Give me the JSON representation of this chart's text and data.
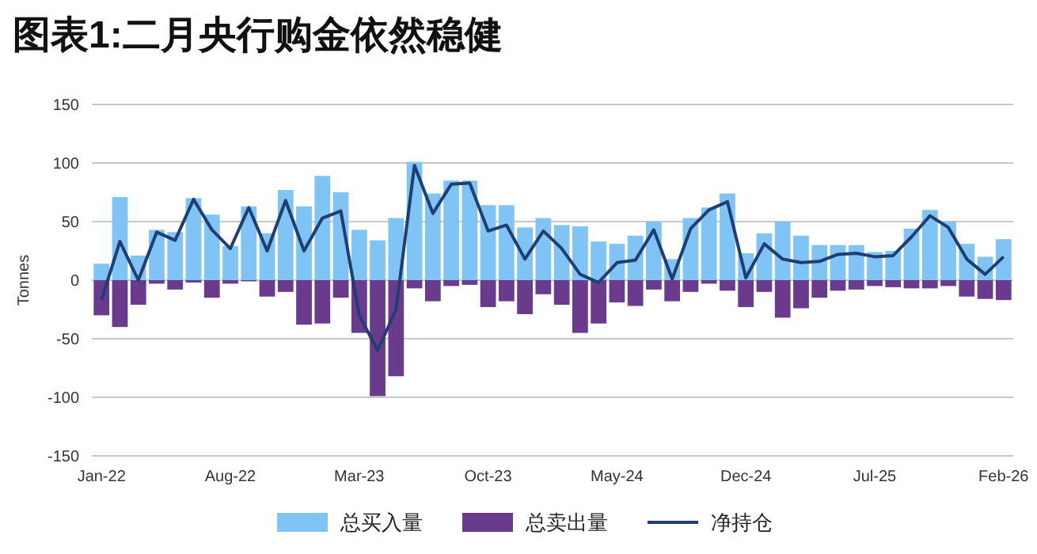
{
  "chart_data": {
    "type": "bar",
    "title": "图表1:二月央行购金依然稳健",
    "ylabel": "Tonnes",
    "categories": [
      "Jan-22",
      null,
      null,
      null,
      null,
      null,
      null,
      "Aug-22",
      null,
      null,
      null,
      null,
      null,
      null,
      "Mar-23",
      null,
      null,
      null,
      null,
      null,
      null,
      "Oct-23",
      null,
      null,
      null,
      null,
      null,
      null,
      "May-24",
      null,
      null,
      null,
      null,
      null,
      null,
      "Dec-24",
      null,
      null,
      null,
      null,
      null,
      null,
      "Jul-25",
      null,
      null,
      null,
      null,
      null,
      null,
      "Feb-26"
    ],
    "series": [
      {
        "name": "总买入量",
        "color": "#7fc4f5",
        "values": [
          14,
          71,
          21,
          43,
          41,
          70,
          56,
          29,
          63,
          40,
          77,
          63,
          89,
          75,
          43,
          34,
          53,
          101,
          74,
          85,
          85,
          64,
          64,
          45,
          53,
          47,
          46,
          33,
          31,
          38,
          50,
          18,
          53,
          62,
          74,
          23,
          40,
          50,
          38,
          30,
          30,
          30,
          24,
          25,
          44,
          60,
          50,
          31,
          20,
          35
        ]
      },
      {
        "name": "总卖出量",
        "color": "#6a3a8c",
        "values": [
          -30,
          -40,
          -21,
          -3,
          -8,
          -2,
          -15,
          -3,
          -1,
          -14,
          -10,
          -38,
          -37,
          -15,
          -45,
          -99,
          -82,
          -7,
          -18,
          -5,
          -4,
          -23,
          -18,
          -29,
          -12,
          -21,
          -45,
          -37,
          -19,
          -22,
          -8,
          -18,
          -10,
          -3,
          -9,
          -23,
          -10,
          -32,
          -24,
          -15,
          -9,
          -8,
          -5,
          -6,
          -7,
          -7,
          -5,
          -14,
          -16,
          -17
        ]
      },
      {
        "name": "净持仓",
        "type": "line",
        "color": "#1f3e73",
        "values": [
          -17,
          33,
          0,
          41,
          34,
          69,
          43,
          27,
          62,
          25,
          68,
          25,
          53,
          59,
          -30,
          -60,
          -25,
          98,
          57,
          82,
          83,
          42,
          47,
          18,
          42,
          27,
          5,
          -2,
          15,
          17,
          43,
          1,
          44,
          60,
          67,
          2,
          31,
          18,
          15,
          16,
          22,
          23,
          20,
          21,
          37,
          55,
          45,
          18,
          5,
          20
        ]
      }
    ],
    "stacked": true,
    "ylim": [
      -150,
      150
    ],
    "yticks": [
      -150,
      -100,
      -50,
      0,
      50,
      100,
      150
    ],
    "grid": "y",
    "legend": "bottom",
    "line_style": "solid",
    "marker": "none"
  }
}
